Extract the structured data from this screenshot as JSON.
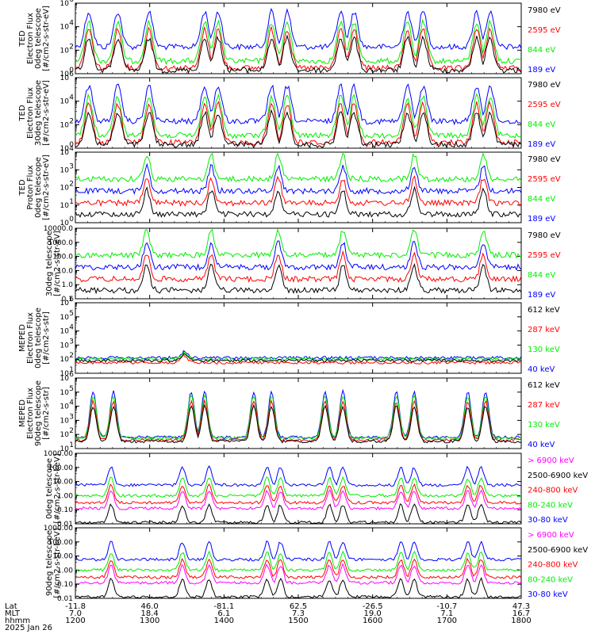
{
  "chart_data": [
    {
      "type": "line",
      "ylabel": [
        "TED",
        "Electron Flux",
        "0deg telescope",
        "[#/cm2-s-str-eV]"
      ],
      "ylim": [
        1,
        1000000
      ],
      "scale": "log",
      "yticks": [
        "10",
        "10",
        "10",
        "10"
      ],
      "yexp": [
        "6",
        "4",
        "2",
        "0"
      ],
      "series": [
        {
          "name": "7980 eV",
          "color": "#000000"
        },
        {
          "name": "2595 eV",
          "color": "#ff0000"
        },
        {
          "name": "844 eV",
          "color": "#00ee00"
        },
        {
          "name": "189 eV",
          "color": "#0000ff"
        }
      ]
    },
    {
      "type": "line",
      "ylabel": [
        "TED",
        "Electron Flux",
        "30deg telescope",
        "[#/cm2-s-str-eV]"
      ],
      "ylim": [
        1,
        1000000
      ],
      "scale": "log",
      "yticks": [
        "10",
        "10",
        "10",
        "10"
      ],
      "yexp": [
        "6",
        "4",
        "2",
        "0"
      ],
      "series": [
        {
          "name": "7980 eV",
          "color": "#000000"
        },
        {
          "name": "2595 eV",
          "color": "#ff0000"
        },
        {
          "name": "844 eV",
          "color": "#00ee00"
        },
        {
          "name": "189 eV",
          "color": "#0000ff"
        }
      ]
    },
    {
      "type": "line",
      "ylabel": [
        "TED",
        "Proton Flux",
        "0deg telescope",
        "[#/cm2-s-str-eV]"
      ],
      "ylim": [
        1,
        10000
      ],
      "scale": "log",
      "yticks": [
        "10",
        "10",
        "10",
        "10",
        "10"
      ],
      "yexp": [
        "4",
        "3",
        "2",
        "1",
        "0"
      ],
      "series": [
        {
          "name": "7980 eV",
          "color": "#000000"
        },
        {
          "name": "2595 eV",
          "color": "#ff0000"
        },
        {
          "name": "844 eV",
          "color": "#00ee00"
        },
        {
          "name": "189 eV",
          "color": "#0000ff"
        }
      ]
    },
    {
      "type": "line",
      "ylabel": [
        "30deg telescope",
        "[#/cm2-s-str-eV]"
      ],
      "ylim": [
        0.1,
        10000
      ],
      "scale": "log",
      "yticks": [
        "10000.0",
        "1000.0",
        "100.0",
        "10.0",
        "1.0",
        "0.1"
      ],
      "yexp": [
        "",
        "",
        "",
        "",
        "",
        ""
      ],
      "series": [
        {
          "name": "7980 eV",
          "color": "#000000"
        },
        {
          "name": "2595 eV",
          "color": "#ff0000"
        },
        {
          "name": "844 eV",
          "color": "#00ee00"
        },
        {
          "name": "189 eV",
          "color": "#0000ff"
        }
      ]
    },
    {
      "type": "line",
      "ylabel": [
        "MEPED",
        "Electron Flux",
        "0deg telescope",
        "[#/cm2-s-str]"
      ],
      "ylim": [
        10,
        1000000
      ],
      "scale": "log",
      "yticks": [
        "10",
        "10",
        "10",
        "10",
        "10",
        "10"
      ],
      "yexp": [
        "6",
        "5",
        "4",
        "3",
        "2",
        "1"
      ],
      "series": [
        {
          "name": "612 keV",
          "color": "#000000"
        },
        {
          "name": "287 keV",
          "color": "#ff0000"
        },
        {
          "name": "130 keV",
          "color": "#00ee00"
        },
        {
          "name": "40 keV",
          "color": "#0000ff"
        }
      ]
    },
    {
      "type": "line",
      "ylabel": [
        "MEPED",
        "Electron Flux",
        "90deg telescope",
        "[#/cm2-s-str]"
      ],
      "ylim": [
        10,
        1000000
      ],
      "scale": "log",
      "yticks": [
        "10",
        "10",
        "10",
        "10",
        "10",
        "10"
      ],
      "yexp": [
        "6",
        "5",
        "4",
        "3",
        "2",
        "1"
      ],
      "series": [
        {
          "name": "612 keV",
          "color": "#000000"
        },
        {
          "name": "287 keV",
          "color": "#ff0000"
        },
        {
          "name": "130 keV",
          "color": "#00ee00"
        },
        {
          "name": "40 keV",
          "color": "#0000ff"
        }
      ]
    },
    {
      "type": "line",
      "ylabel": [
        "0deg telescope",
        "[#/cm2-s-str-keV]"
      ],
      "ylim": [
        0.01,
        1000
      ],
      "scale": "log",
      "yticks": [
        "1000.00",
        "100.00",
        "10.00",
        "1.00",
        "0.10",
        "0.01"
      ],
      "yexp": [
        "",
        "",
        "",
        "",
        "",
        ""
      ],
      "series": [
        {
          "name": "> 6900 keV",
          "color": "#ff00ff"
        },
        {
          "name": "2500-6900 keV",
          "color": "#000000"
        },
        {
          "name": "240-800 keV",
          "color": "#ff0000"
        },
        {
          "name": "80-240 keV",
          "color": "#00ee00"
        },
        {
          "name": "30-80 keV",
          "color": "#0000ff"
        }
      ]
    },
    {
      "type": "line",
      "ylabel": [
        "90deg telescope",
        "[#/cm2-s-str-keV]"
      ],
      "ylim": [
        0.01,
        1000
      ],
      "scale": "log",
      "yticks": [
        "1000.00",
        "100.00",
        "10.00",
        "1.00",
        "0.10",
        "0.01"
      ],
      "yexp": [
        "",
        "",
        "",
        "",
        "",
        ""
      ],
      "series": [
        {
          "name": "> 6900 keV",
          "color": "#ff00ff"
        },
        {
          "name": "2500-6900 keV",
          "color": "#000000"
        },
        {
          "name": "240-800 keV",
          "color": "#ff0000"
        },
        {
          "name": "80-240 keV",
          "color": "#00ee00"
        },
        {
          "name": "30-80 keV",
          "color": "#0000ff"
        }
      ]
    }
  ],
  "x_axis": {
    "row_labels": [
      "Lat",
      "MLT",
      "hhmm",
      "2025 Jan 26"
    ],
    "columns": [
      {
        "lat": "-11.8",
        "mlt": "7.0",
        "hhmm": "1200"
      },
      {
        "lat": "46.0",
        "mlt": "18.4",
        "hhmm": "1300"
      },
      {
        "lat": "-81.1",
        "mlt": "6.1",
        "hhmm": "1400"
      },
      {
        "lat": "62.5",
        "mlt": "7.3",
        "hhmm": "1500"
      },
      {
        "lat": "-26.5",
        "mlt": "19.0",
        "hhmm": "1600"
      },
      {
        "lat": "-10.7",
        "mlt": "7.1",
        "hhmm": "1700"
      },
      {
        "lat": "47.3",
        "mlt": "16.7",
        "hhmm": "1800"
      }
    ]
  }
}
